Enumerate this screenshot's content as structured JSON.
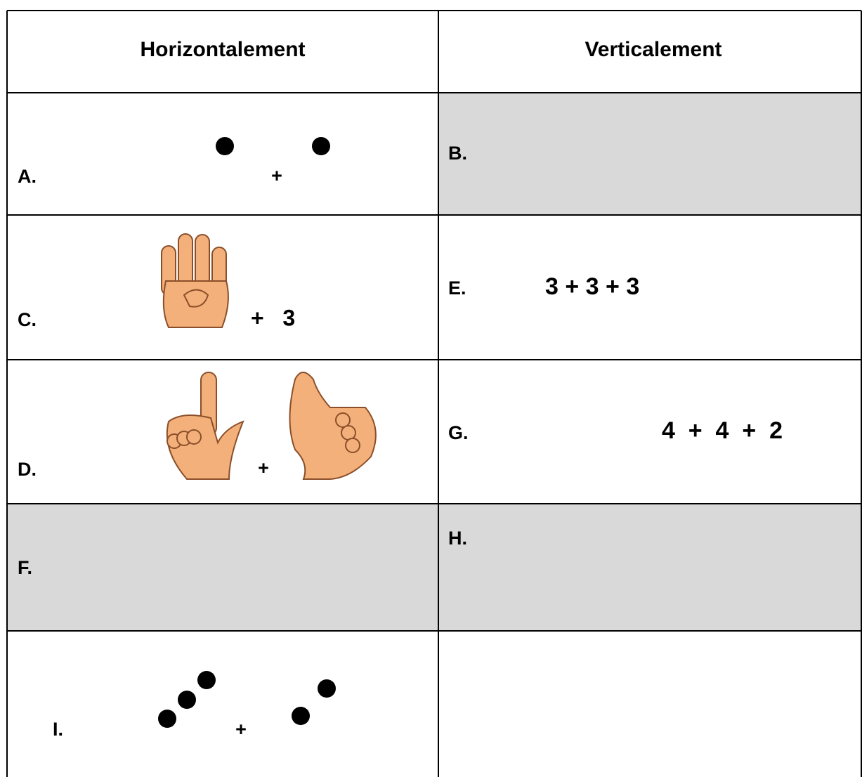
{
  "table": {
    "header": [
      "Horizontalement",
      "Verticalement"
    ],
    "rows": [
      [
        {
          "label": "A.",
          "expression": "+"
        },
        {
          "label": "B."
        }
      ],
      [
        {
          "label": "C.",
          "expression": "+   3"
        },
        {
          "label": "E.",
          "expression": "3 + 3 + 3"
        }
      ],
      [
        {
          "label": "D.",
          "expression": "+"
        },
        {
          "label": "G.",
          "expression": "4  +  4  +  2"
        }
      ],
      [
        {
          "label": "F."
        },
        {
          "label": "H."
        }
      ],
      [
        {
          "label": "I.",
          "expression": "+"
        }
      ]
    ]
  }
}
